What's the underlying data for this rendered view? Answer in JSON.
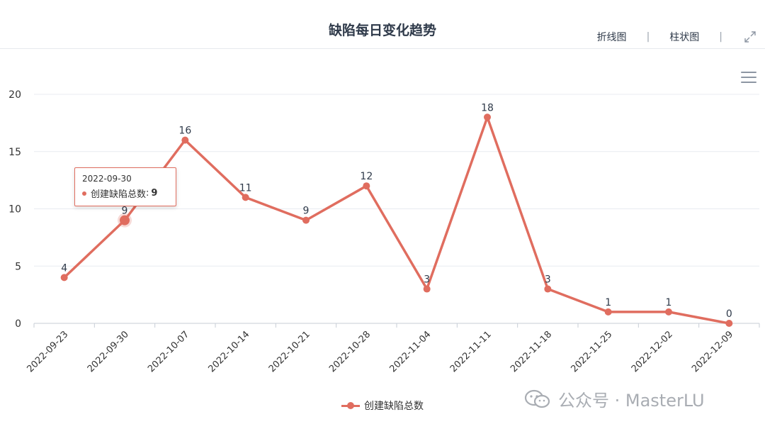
{
  "header": {
    "title": "缺陷每日变化趋势",
    "tabs": [
      {
        "label": "折线图"
      },
      {
        "label": "柱状图"
      }
    ],
    "separator": "|"
  },
  "tooltip": {
    "date": "2022-09-30",
    "series_label": "创建缺陷总数",
    "value": "9"
  },
  "watermark": {
    "text": "公众号 · MasterLU",
    "icon": "wechat-icon"
  },
  "colors": {
    "series": "#e06d5f",
    "grid": "#e8ebf0",
    "axis_text": "#333333"
  },
  "chart_data": {
    "type": "line",
    "title": "缺陷每日变化趋势",
    "categories": [
      "2022-09-23",
      "2022-09-30",
      "2022-10-07",
      "2022-10-14",
      "2022-10-21",
      "2022-10-28",
      "2022-11-04",
      "2022-11-11",
      "2022-11-18",
      "2022-11-25",
      "2022-12-02",
      "2022-12-09"
    ],
    "series": [
      {
        "name": "创建缺陷总数",
        "values": [
          4,
          9,
          16,
          11,
          9,
          12,
          3,
          18,
          3,
          1,
          1,
          0
        ]
      }
    ],
    "yticks": [
      0,
      5,
      10,
      15,
      20
    ],
    "ylim": [
      0,
      20
    ],
    "grid": true,
    "legend_position": "bottom-center",
    "data_labels": true,
    "highlighted_index": 1
  }
}
